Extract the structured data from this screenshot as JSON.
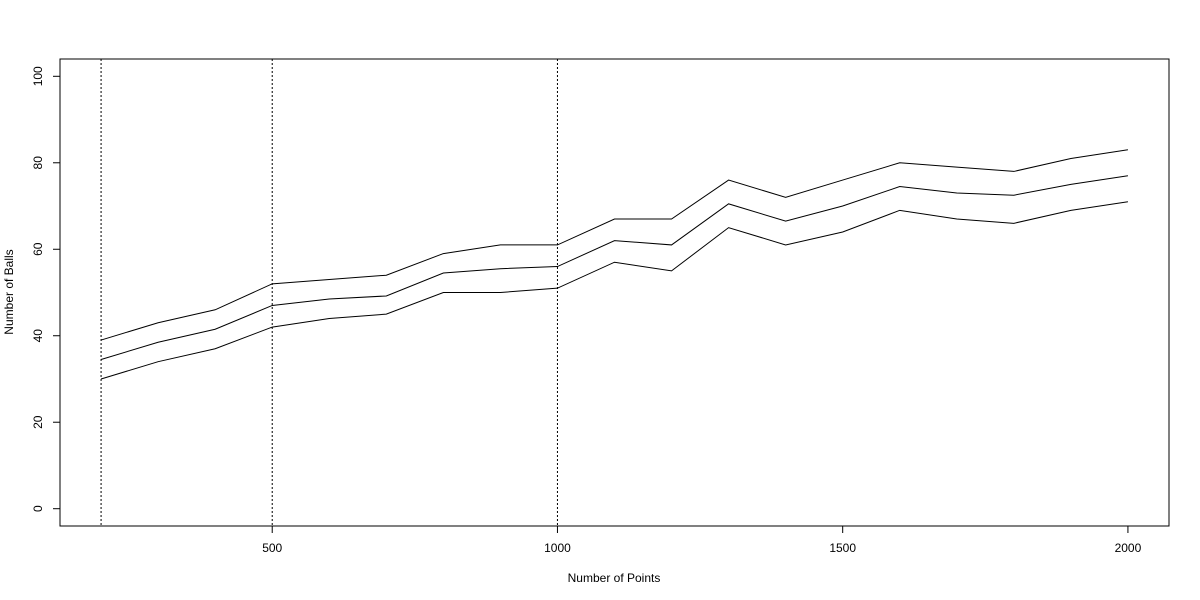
{
  "chart_data": {
    "type": "line",
    "xlabel": "Number of Points",
    "ylabel": "Number of Balls",
    "x": [
      200,
      300,
      400,
      500,
      600,
      700,
      800,
      900,
      1000,
      1100,
      1200,
      1300,
      1400,
      1500,
      1600,
      1700,
      1800,
      1900,
      2000
    ],
    "series": [
      {
        "color": "#000000",
        "values": [
          39,
          43,
          46,
          52,
          53,
          54,
          59,
          61,
          61,
          67,
          67,
          76,
          72,
          76,
          80,
          79,
          78,
          81,
          83
        ]
      },
      {
        "color": "#000000",
        "values": [
          34.5,
          38.5,
          41.5,
          47,
          48.5,
          49.2,
          54.5,
          55.5,
          56,
          62,
          61,
          70.5,
          66.5,
          70,
          74.5,
          73,
          72.5,
          75,
          77
        ]
      },
      {
        "color": "#000000",
        "values": [
          30,
          34,
          37,
          42,
          44,
          45,
          50,
          50,
          51,
          57,
          55,
          65,
          61,
          64,
          69,
          67,
          66,
          69,
          71
        ]
      }
    ],
    "vlines": [
      200,
      500,
      1000
    ],
    "xlim": [
      128,
      2072
    ],
    "ylim": [
      -4,
      104
    ],
    "xticks": [
      500,
      1000,
      1500,
      2000
    ],
    "yticks": [
      0,
      20,
      40,
      60,
      80,
      100
    ]
  }
}
